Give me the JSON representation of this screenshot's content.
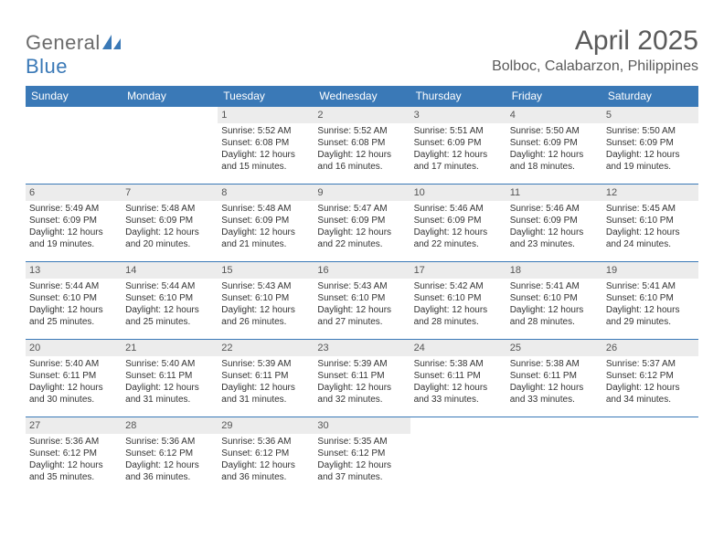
{
  "logo": {
    "general": "General",
    "blue": "Blue"
  },
  "title": "April 2025",
  "location": "Bolboc, Calabarzon, Philippines",
  "colors": {
    "header_bg": "#3a79b7",
    "header_text": "#ffffff",
    "daynum_bg": "#ececec",
    "border": "#3a79b7",
    "text": "#333333",
    "title_text": "#5a5a5a"
  },
  "labels": {
    "sunrise": "Sunrise:",
    "sunset": "Sunset:",
    "daylight": "Daylight:"
  },
  "weekdays": [
    "Sunday",
    "Monday",
    "Tuesday",
    "Wednesday",
    "Thursday",
    "Friday",
    "Saturday"
  ],
  "weeks": [
    [
      null,
      null,
      {
        "n": "1",
        "sr": "5:52 AM",
        "ss": "6:08 PM",
        "dl1": "12 hours",
        "dl2": "and 15 minutes."
      },
      {
        "n": "2",
        "sr": "5:52 AM",
        "ss": "6:08 PM",
        "dl1": "12 hours",
        "dl2": "and 16 minutes."
      },
      {
        "n": "3",
        "sr": "5:51 AM",
        "ss": "6:09 PM",
        "dl1": "12 hours",
        "dl2": "and 17 minutes."
      },
      {
        "n": "4",
        "sr": "5:50 AM",
        "ss": "6:09 PM",
        "dl1": "12 hours",
        "dl2": "and 18 minutes."
      },
      {
        "n": "5",
        "sr": "5:50 AM",
        "ss": "6:09 PM",
        "dl1": "12 hours",
        "dl2": "and 19 minutes."
      }
    ],
    [
      {
        "n": "6",
        "sr": "5:49 AM",
        "ss": "6:09 PM",
        "dl1": "12 hours",
        "dl2": "and 19 minutes."
      },
      {
        "n": "7",
        "sr": "5:48 AM",
        "ss": "6:09 PM",
        "dl1": "12 hours",
        "dl2": "and 20 minutes."
      },
      {
        "n": "8",
        "sr": "5:48 AM",
        "ss": "6:09 PM",
        "dl1": "12 hours",
        "dl2": "and 21 minutes."
      },
      {
        "n": "9",
        "sr": "5:47 AM",
        "ss": "6:09 PM",
        "dl1": "12 hours",
        "dl2": "and 22 minutes."
      },
      {
        "n": "10",
        "sr": "5:46 AM",
        "ss": "6:09 PM",
        "dl1": "12 hours",
        "dl2": "and 22 minutes."
      },
      {
        "n": "11",
        "sr": "5:46 AM",
        "ss": "6:09 PM",
        "dl1": "12 hours",
        "dl2": "and 23 minutes."
      },
      {
        "n": "12",
        "sr": "5:45 AM",
        "ss": "6:10 PM",
        "dl1": "12 hours",
        "dl2": "and 24 minutes."
      }
    ],
    [
      {
        "n": "13",
        "sr": "5:44 AM",
        "ss": "6:10 PM",
        "dl1": "12 hours",
        "dl2": "and 25 minutes."
      },
      {
        "n": "14",
        "sr": "5:44 AM",
        "ss": "6:10 PM",
        "dl1": "12 hours",
        "dl2": "and 25 minutes."
      },
      {
        "n": "15",
        "sr": "5:43 AM",
        "ss": "6:10 PM",
        "dl1": "12 hours",
        "dl2": "and 26 minutes."
      },
      {
        "n": "16",
        "sr": "5:43 AM",
        "ss": "6:10 PM",
        "dl1": "12 hours",
        "dl2": "and 27 minutes."
      },
      {
        "n": "17",
        "sr": "5:42 AM",
        "ss": "6:10 PM",
        "dl1": "12 hours",
        "dl2": "and 28 minutes."
      },
      {
        "n": "18",
        "sr": "5:41 AM",
        "ss": "6:10 PM",
        "dl1": "12 hours",
        "dl2": "and 28 minutes."
      },
      {
        "n": "19",
        "sr": "5:41 AM",
        "ss": "6:10 PM",
        "dl1": "12 hours",
        "dl2": "and 29 minutes."
      }
    ],
    [
      {
        "n": "20",
        "sr": "5:40 AM",
        "ss": "6:11 PM",
        "dl1": "12 hours",
        "dl2": "and 30 minutes."
      },
      {
        "n": "21",
        "sr": "5:40 AM",
        "ss": "6:11 PM",
        "dl1": "12 hours",
        "dl2": "and 31 minutes."
      },
      {
        "n": "22",
        "sr": "5:39 AM",
        "ss": "6:11 PM",
        "dl1": "12 hours",
        "dl2": "and 31 minutes."
      },
      {
        "n": "23",
        "sr": "5:39 AM",
        "ss": "6:11 PM",
        "dl1": "12 hours",
        "dl2": "and 32 minutes."
      },
      {
        "n": "24",
        "sr": "5:38 AM",
        "ss": "6:11 PM",
        "dl1": "12 hours",
        "dl2": "and 33 minutes."
      },
      {
        "n": "25",
        "sr": "5:38 AM",
        "ss": "6:11 PM",
        "dl1": "12 hours",
        "dl2": "and 33 minutes."
      },
      {
        "n": "26",
        "sr": "5:37 AM",
        "ss": "6:12 PM",
        "dl1": "12 hours",
        "dl2": "and 34 minutes."
      }
    ],
    [
      {
        "n": "27",
        "sr": "5:36 AM",
        "ss": "6:12 PM",
        "dl1": "12 hours",
        "dl2": "and 35 minutes."
      },
      {
        "n": "28",
        "sr": "5:36 AM",
        "ss": "6:12 PM",
        "dl1": "12 hours",
        "dl2": "and 36 minutes."
      },
      {
        "n": "29",
        "sr": "5:36 AM",
        "ss": "6:12 PM",
        "dl1": "12 hours",
        "dl2": "and 36 minutes."
      },
      {
        "n": "30",
        "sr": "5:35 AM",
        "ss": "6:12 PM",
        "dl1": "12 hours",
        "dl2": "and 37 minutes."
      },
      null,
      null,
      null
    ]
  ]
}
